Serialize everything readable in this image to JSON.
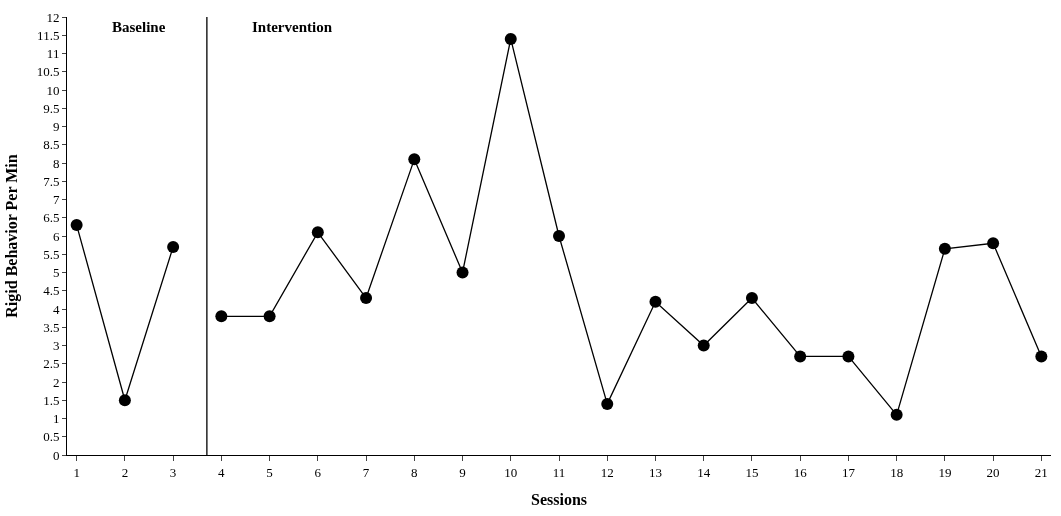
{
  "chart_data": {
    "type": "line",
    "xlabel": "Sessions",
    "ylabel": "Rigid Behavior Per Min",
    "series": [
      {
        "color": "#000000",
        "x": [
          1,
          2,
          3
        ],
        "values": [
          6.3,
          1.5,
          5.7
        ]
      },
      {
        "color": "#000000",
        "x": [
          4,
          5,
          6,
          7,
          8,
          9,
          10,
          11,
          12,
          13,
          14,
          15,
          16,
          17,
          18,
          19,
          20,
          21
        ],
        "values": [
          3.8,
          3.8,
          6.1,
          4.3,
          8.1,
          5.0,
          11.4,
          6.0,
          1.4,
          4.2,
          3.0,
          4.3,
          2.7,
          2.7,
          1.1,
          5.65,
          5.8,
          2.7
        ]
      }
    ],
    "xlim": [
      0.8,
      21.2
    ],
    "xticks": [
      1,
      2,
      3,
      4,
      5,
      6,
      7,
      8,
      9,
      10,
      11,
      12,
      13,
      14,
      15,
      16,
      17,
      18,
      19,
      20,
      21
    ],
    "ylim": [
      0,
      12
    ],
    "yticks": [
      0,
      0.5,
      1,
      1.5,
      2,
      2.5,
      3,
      3.5,
      4,
      4.5,
      5,
      5.5,
      6,
      6.5,
      7,
      7.5,
      8,
      8.5,
      9,
      9.5,
      10,
      10.5,
      11,
      11.5,
      12
    ],
    "ref_lines": [
      {
        "axis": "x",
        "value": 3.7,
        "color": "#000000"
      }
    ],
    "annotations": [
      "Baseline",
      "Intervention"
    ],
    "marker": "circle",
    "line_style": "solid"
  }
}
